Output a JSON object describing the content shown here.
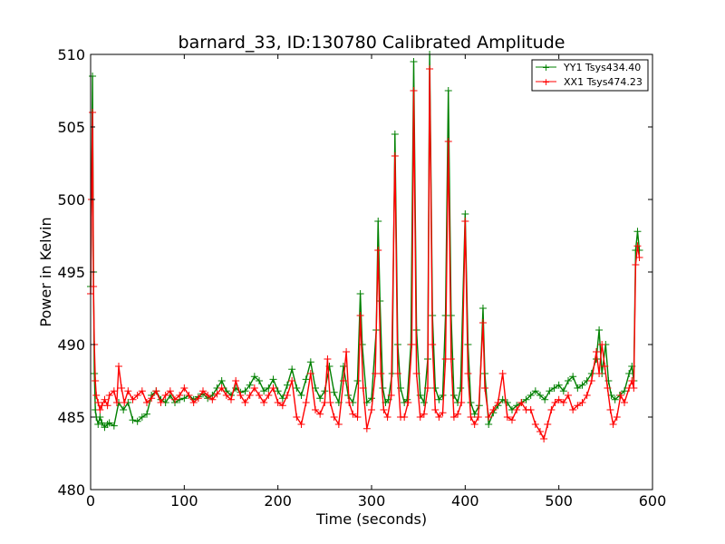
{
  "chart_data": {
    "type": "line",
    "title": "barnard_33, ID:130780 Calibrated Amplitude",
    "xlabel": "Time (seconds)",
    "ylabel": "Power in Kelvin",
    "xlim": [
      0,
      600
    ],
    "ylim": [
      480,
      510
    ],
    "xticks": [
      "0",
      "100",
      "200",
      "300",
      "400",
      "500",
      "600"
    ],
    "yticks": [
      "480",
      "485",
      "490",
      "495",
      "500",
      "505",
      "510"
    ],
    "grid": false,
    "legend_position": "top-right",
    "marker": "+",
    "series": [
      {
        "name": "YY1 Tsys434.40",
        "color": "#008000",
        "points": [
          [
            0,
            494
          ],
          [
            1,
            500
          ],
          [
            2,
            508.5
          ],
          [
            3,
            495
          ],
          [
            4,
            488
          ],
          [
            5,
            485.5
          ],
          [
            6,
            485
          ],
          [
            8,
            484.5
          ],
          [
            10,
            485
          ],
          [
            12,
            484.6
          ],
          [
            15,
            484.3
          ],
          [
            18,
            484.5
          ],
          [
            20,
            484.6
          ],
          [
            25,
            484.4
          ],
          [
            30,
            486
          ],
          [
            35,
            485.5
          ],
          [
            40,
            486
          ],
          [
            45,
            484.8
          ],
          [
            50,
            484.7
          ],
          [
            55,
            485
          ],
          [
            60,
            485.2
          ],
          [
            65,
            486.5
          ],
          [
            70,
            486.8
          ],
          [
            75,
            486.2
          ],
          [
            80,
            486
          ],
          [
            85,
            486.5
          ],
          [
            90,
            486
          ],
          [
            95,
            486.2
          ],
          [
            100,
            486.3
          ],
          [
            105,
            486.5
          ],
          [
            110,
            486.2
          ],
          [
            115,
            486.4
          ],
          [
            120,
            486.6
          ],
          [
            125,
            486.3
          ],
          [
            130,
            486.5
          ],
          [
            135,
            487
          ],
          [
            140,
            487.5
          ],
          [
            145,
            486.8
          ],
          [
            150,
            486.5
          ],
          [
            155,
            487
          ],
          [
            160,
            486.7
          ],
          [
            165,
            486.8
          ],
          [
            170,
            487.2
          ],
          [
            175,
            487.8
          ],
          [
            180,
            487.5
          ],
          [
            185,
            486.8
          ],
          [
            190,
            487
          ],
          [
            195,
            487.6
          ],
          [
            200,
            486.8
          ],
          [
            205,
            486.3
          ],
          [
            210,
            487.2
          ],
          [
            215,
            488.3
          ],
          [
            220,
            487
          ],
          [
            225,
            486.5
          ],
          [
            230,
            487.6
          ],
          [
            235,
            488.8
          ],
          [
            240,
            487
          ],
          [
            245,
            486.3
          ],
          [
            250,
            486.8
          ],
          [
            255,
            488.5
          ],
          [
            260,
            486.7
          ],
          [
            265,
            486
          ],
          [
            270,
            488.5
          ],
          [
            275,
            486.5
          ],
          [
            280,
            486
          ],
          [
            285,
            487.5
          ],
          [
            288,
            493.5
          ],
          [
            290,
            490
          ],
          [
            295,
            486
          ],
          [
            300,
            486.3
          ],
          [
            305,
            491
          ],
          [
            307,
            498.5
          ],
          [
            309,
            493
          ],
          [
            312,
            487
          ],
          [
            315,
            486
          ],
          [
            318,
            486.2
          ],
          [
            322,
            488
          ],
          [
            325,
            504.5
          ],
          [
            328,
            490
          ],
          [
            331,
            487
          ],
          [
            335,
            486
          ],
          [
            338,
            486.2
          ],
          [
            342,
            490
          ],
          [
            345,
            509.5
          ],
          [
            348,
            491
          ],
          [
            352,
            486.5
          ],
          [
            356,
            486
          ],
          [
            360,
            489
          ],
          [
            362,
            510
          ],
          [
            365,
            492
          ],
          [
            368,
            487
          ],
          [
            372,
            486.2
          ],
          [
            376,
            486.5
          ],
          [
            379,
            492
          ],
          [
            382,
            507.5
          ],
          [
            385,
            492
          ],
          [
            388,
            486.5
          ],
          [
            392,
            486
          ],
          [
            395,
            487
          ],
          [
            400,
            499
          ],
          [
            403,
            490
          ],
          [
            406,
            486
          ],
          [
            410,
            485.2
          ],
          [
            415,
            485.8
          ],
          [
            419,
            492.5
          ],
          [
            421,
            488
          ],
          [
            425,
            484.5
          ],
          [
            430,
            485.3
          ],
          [
            435,
            485.8
          ],
          [
            440,
            486.2
          ],
          [
            445,
            486
          ],
          [
            450,
            485.5
          ],
          [
            455,
            485.8
          ],
          [
            460,
            486
          ],
          [
            465,
            486.2
          ],
          [
            470,
            486.5
          ],
          [
            475,
            486.8
          ],
          [
            480,
            486.5
          ],
          [
            485,
            486.2
          ],
          [
            490,
            486.8
          ],
          [
            495,
            487
          ],
          [
            500,
            487.2
          ],
          [
            505,
            486.8
          ],
          [
            510,
            487.5
          ],
          [
            515,
            487.8
          ],
          [
            520,
            487
          ],
          [
            525,
            487.2
          ],
          [
            530,
            487.5
          ],
          [
            535,
            488
          ],
          [
            540,
            489
          ],
          [
            543,
            491
          ],
          [
            546,
            488
          ],
          [
            550,
            490
          ],
          [
            553,
            487.5
          ],
          [
            556,
            486.5
          ],
          [
            560,
            486.2
          ],
          [
            565,
            486.5
          ],
          [
            570,
            486.8
          ],
          [
            575,
            488
          ],
          [
            578,
            488.5
          ],
          [
            580,
            487.5
          ],
          [
            582,
            496.5
          ],
          [
            584,
            497.8
          ],
          [
            586,
            496.5
          ]
        ]
      },
      {
        "name": "XX1 Tsys474.23",
        "color": "#ff0000",
        "points": [
          [
            0,
            493.5
          ],
          [
            1,
            500
          ],
          [
            2,
            506
          ],
          [
            3,
            494
          ],
          [
            4,
            490
          ],
          [
            5,
            487.5
          ],
          [
            6,
            486.5
          ],
          [
            8,
            486
          ],
          [
            10,
            485.5
          ],
          [
            12,
            485.8
          ],
          [
            15,
            486.2
          ],
          [
            18,
            485.8
          ],
          [
            20,
            486.5
          ],
          [
            25,
            486.8
          ],
          [
            28,
            486
          ],
          [
            30,
            488.5
          ],
          [
            33,
            487
          ],
          [
            36,
            486
          ],
          [
            40,
            486.8
          ],
          [
            45,
            486.2
          ],
          [
            50,
            486.5
          ],
          [
            55,
            486.8
          ],
          [
            60,
            486
          ],
          [
            65,
            486.3
          ],
          [
            70,
            486.8
          ],
          [
            75,
            486
          ],
          [
            80,
            486.5
          ],
          [
            85,
            486.8
          ],
          [
            90,
            486.2
          ],
          [
            95,
            486.5
          ],
          [
            100,
            487
          ],
          [
            105,
            486.5
          ],
          [
            110,
            486
          ],
          [
            115,
            486.3
          ],
          [
            120,
            486.8
          ],
          [
            125,
            486.5
          ],
          [
            130,
            486.2
          ],
          [
            135,
            486.6
          ],
          [
            140,
            487
          ],
          [
            145,
            486.5
          ],
          [
            150,
            486.2
          ],
          [
            155,
            487.5
          ],
          [
            160,
            486.5
          ],
          [
            165,
            486
          ],
          [
            170,
            486.5
          ],
          [
            175,
            487
          ],
          [
            180,
            486.5
          ],
          [
            185,
            486
          ],
          [
            190,
            486.5
          ],
          [
            195,
            487
          ],
          [
            200,
            486
          ],
          [
            205,
            485.8
          ],
          [
            210,
            486.5
          ],
          [
            215,
            487.5
          ],
          [
            220,
            485
          ],
          [
            225,
            484.5
          ],
          [
            230,
            486
          ],
          [
            235,
            488
          ],
          [
            240,
            485.5
          ],
          [
            245,
            485.2
          ],
          [
            250,
            486
          ],
          [
            253,
            489
          ],
          [
            256,
            486
          ],
          [
            260,
            485
          ],
          [
            265,
            484.5
          ],
          [
            270,
            487.5
          ],
          [
            273,
            489.5
          ],
          [
            276,
            486
          ],
          [
            280,
            485.2
          ],
          [
            285,
            485
          ],
          [
            288,
            492
          ],
          [
            291,
            487
          ],
          [
            295,
            484.2
          ],
          [
            300,
            485.5
          ],
          [
            304,
            488
          ],
          [
            307,
            496.5
          ],
          [
            310,
            488
          ],
          [
            313,
            485.5
          ],
          [
            317,
            485
          ],
          [
            321,
            486.5
          ],
          [
            325,
            503
          ],
          [
            328,
            488
          ],
          [
            331,
            485
          ],
          [
            335,
            485
          ],
          [
            339,
            486
          ],
          [
            343,
            490
          ],
          [
            345,
            507.5
          ],
          [
            348,
            488
          ],
          [
            352,
            485
          ],
          [
            356,
            485.2
          ],
          [
            360,
            487
          ],
          [
            362,
            509
          ],
          [
            365,
            490
          ],
          [
            368,
            485.5
          ],
          [
            372,
            485
          ],
          [
            376,
            485.3
          ],
          [
            379,
            489
          ],
          [
            382,
            504
          ],
          [
            385,
            489
          ],
          [
            388,
            485
          ],
          [
            392,
            485.2
          ],
          [
            396,
            486
          ],
          [
            400,
            498.5
          ],
          [
            403,
            488
          ],
          [
            406,
            485
          ],
          [
            410,
            484.5
          ],
          [
            414,
            485
          ],
          [
            419,
            491.5
          ],
          [
            421,
            487
          ],
          [
            425,
            485
          ],
          [
            430,
            485.5
          ],
          [
            435,
            486
          ],
          [
            440,
            488
          ],
          [
            445,
            485
          ],
          [
            450,
            484.8
          ],
          [
            455,
            485.5
          ],
          [
            460,
            486
          ],
          [
            465,
            485.5
          ],
          [
            470,
            485.5
          ],
          [
            475,
            484.5
          ],
          [
            480,
            484
          ],
          [
            484,
            483.5
          ],
          [
            488,
            484.5
          ],
          [
            492,
            485.5
          ],
          [
            496,
            486
          ],
          [
            500,
            486.2
          ],
          [
            505,
            486
          ],
          [
            510,
            486.5
          ],
          [
            515,
            485.5
          ],
          [
            520,
            485.8
          ],
          [
            525,
            486
          ],
          [
            530,
            486.5
          ],
          [
            535,
            487.5
          ],
          [
            540,
            489.5
          ],
          [
            543,
            488
          ],
          [
            546,
            490
          ],
          [
            549,
            488.5
          ],
          [
            552,
            487
          ],
          [
            555,
            485.5
          ],
          [
            558,
            484.5
          ],
          [
            562,
            485
          ],
          [
            566,
            486.5
          ],
          [
            570,
            486
          ],
          [
            575,
            487
          ],
          [
            578,
            487.5
          ],
          [
            580,
            487
          ],
          [
            582,
            495.5
          ],
          [
            584,
            496.8
          ],
          [
            586,
            496
          ]
        ]
      }
    ]
  }
}
